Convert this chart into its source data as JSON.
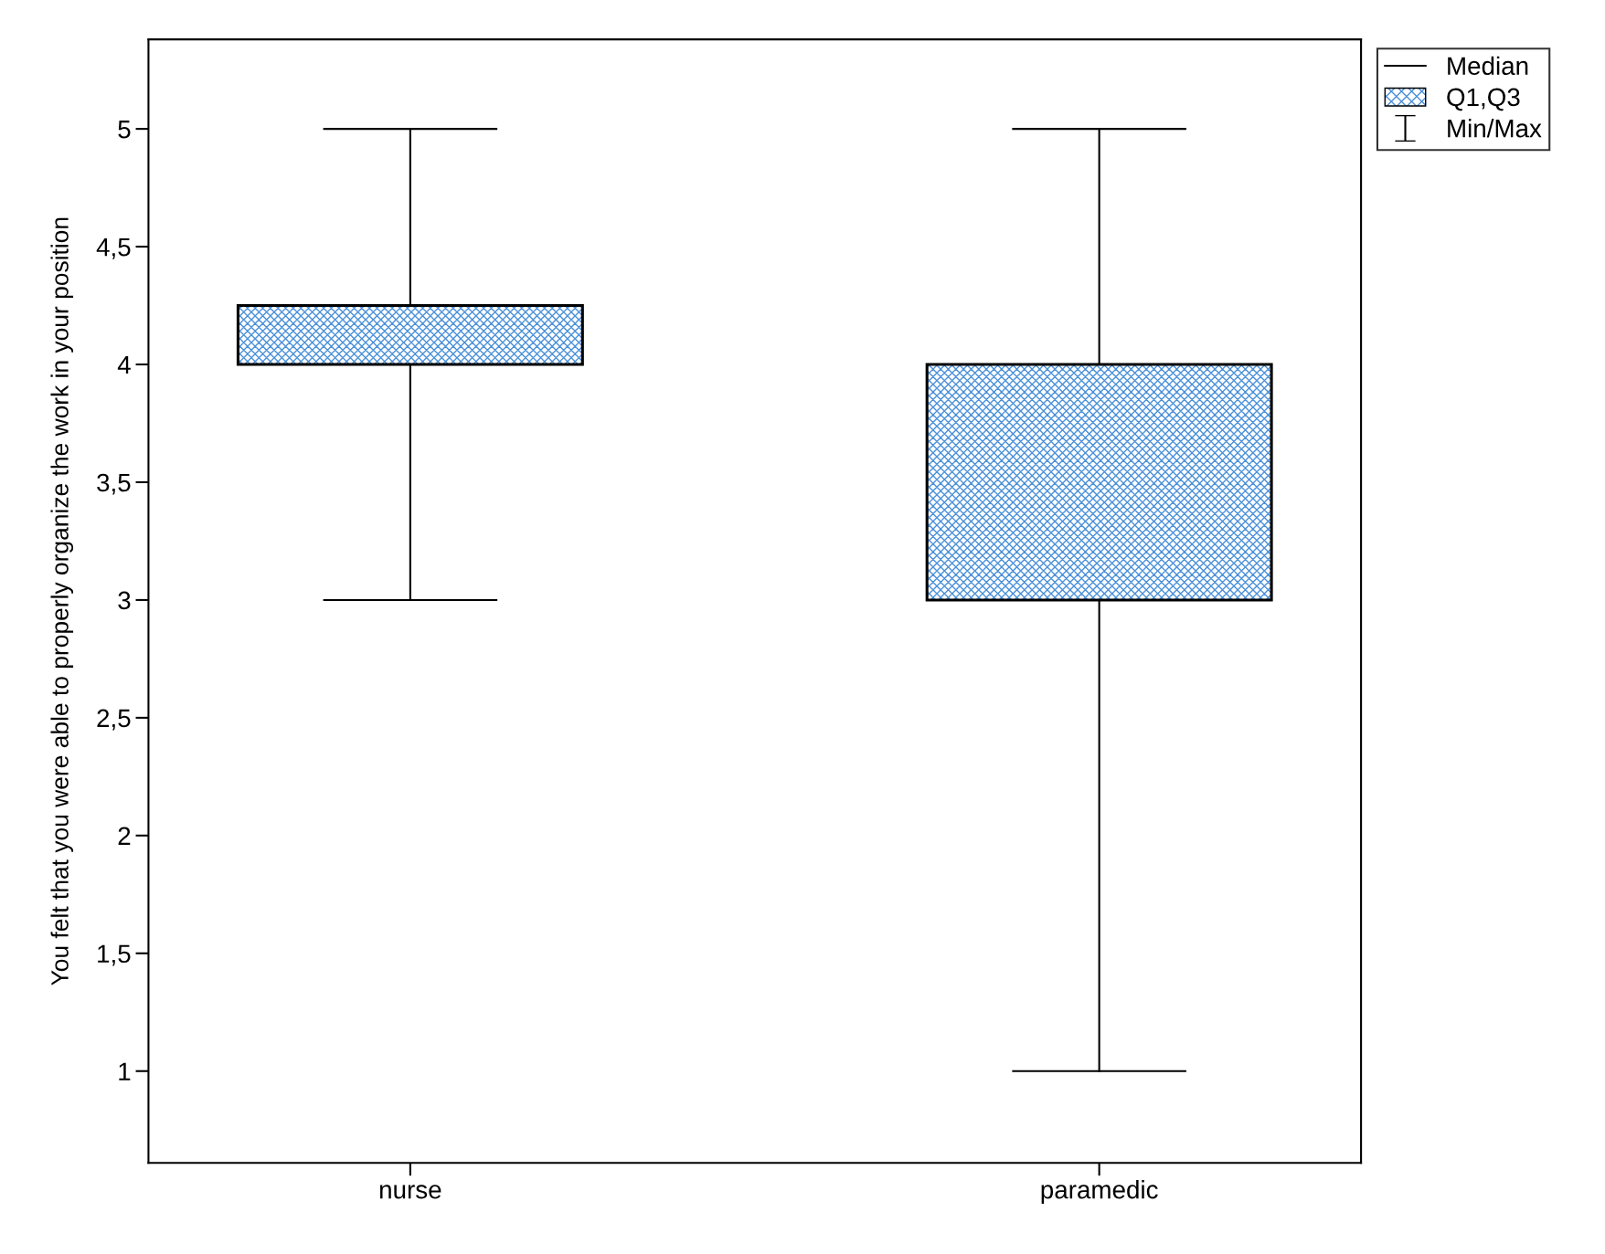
{
  "chart_data": {
    "type": "box",
    "ylabel": "You felt that you were able to properly organize the work in your position",
    "categories": [
      "nurse",
      "paramedic"
    ],
    "series": [
      {
        "name": "Q1,Q3",
        "color": "#4a90d9",
        "boxes": [
          {
            "low": 3,
            "q1": 4,
            "median": 4,
            "q3": 4.25,
            "high": 5
          },
          {
            "low": 1,
            "q1": 3,
            "median": 4,
            "q3": 4,
            "high": 5
          }
        ]
      }
    ],
    "ylim": [
      0.61,
      5.38
    ],
    "yticks": [
      1,
      {
        "value": 1.5,
        "label": "1,5"
      },
      2,
      {
        "value": 2.5,
        "label": "2,5"
      },
      3,
      {
        "value": 3.5,
        "label": "3,5"
      },
      4,
      {
        "value": 4.5,
        "label": "4,5"
      },
      5
    ],
    "annotations": [
      "Median",
      "Min/Max"
    ],
    "legend": "top right",
    "grid": false
  }
}
